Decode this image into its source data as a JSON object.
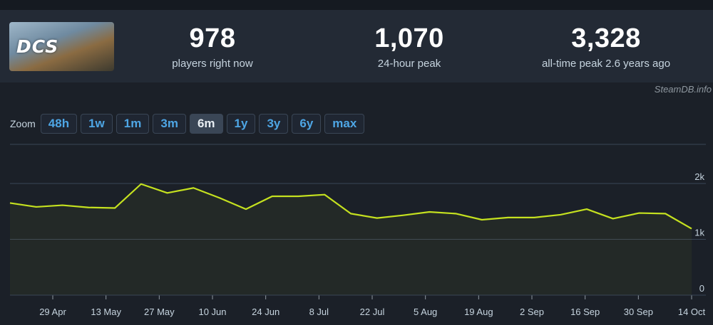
{
  "game": {
    "logo_text": "DCS"
  },
  "stats": [
    {
      "value": "978",
      "label": "players right now"
    },
    {
      "value": "1,070",
      "label": "24-hour peak"
    },
    {
      "value": "3,328",
      "label": "all-time peak 2.6 years ago"
    }
  ],
  "credit": "SteamDB.info",
  "zoom": {
    "label": "Zoom",
    "options": [
      "48h",
      "1w",
      "1m",
      "3m",
      "6m",
      "1y",
      "3y",
      "6y",
      "max"
    ],
    "active": "6m"
  },
  "colors": {
    "line": "#c5e11f",
    "accent": "#4ea6e5",
    "grid": "#3a4656"
  },
  "chart_data": {
    "type": "line",
    "ylim": [
      0,
      2700
    ],
    "yticks": [
      {
        "value": 0,
        "label": "0"
      },
      {
        "value": 1000,
        "label": "1k"
      },
      {
        "value": 2000,
        "label": "2k"
      }
    ],
    "xticks": [
      "29 Apr",
      "13 May",
      "27 May",
      "10 Jun",
      "24 Jun",
      "8 Jul",
      "22 Jul",
      "5 Aug",
      "19 Aug",
      "2 Sep",
      "16 Sep",
      "30 Sep",
      "14 Oct"
    ],
    "series": [
      {
        "values": [
          1650,
          1580,
          1610,
          1570,
          1560,
          1990,
          1830,
          1920,
          1740,
          1540,
          1770,
          1770,
          1800,
          1460,
          1380,
          1430,
          1490,
          1460,
          1350,
          1390,
          1390,
          1440,
          1540,
          1370,
          1470,
          1460,
          1190
        ]
      }
    ],
    "grid": true,
    "legend": "none"
  }
}
